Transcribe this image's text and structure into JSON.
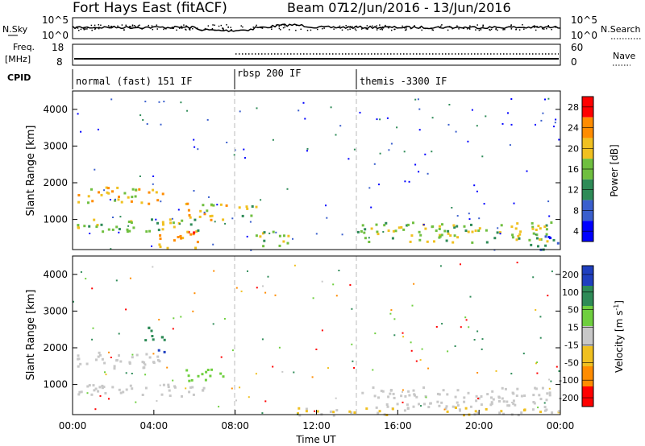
{
  "header": {
    "title": "Fort Hays East (fitACF)",
    "beam": "Beam 07",
    "date_range": "12/Jun/2016 - 13/Jun/2016"
  },
  "noise_panel": {
    "left_label": "N.Sky",
    "right_label": "N.Search",
    "left_ticks": [
      "10^5",
      "10^0"
    ],
    "right_ticks": [
      "10^5",
      "10^0"
    ]
  },
  "freq_panel": {
    "left_label_1": "Freq.",
    "left_label_2": "[MHz]",
    "right_label": "Nave",
    "left_ticks": [
      "18",
      "8"
    ],
    "right_ticks": [
      "60",
      "0"
    ]
  },
  "cpid_panel": {
    "label": "CPID",
    "modes": [
      "normal (fast) 151 IF",
      "rbsp 200 IF",
      "themis -3300 IF"
    ]
  },
  "power_panel": {
    "ylabel": "Slant Range [km]",
    "yticks": [
      "4000",
      "3000",
      "2000",
      "1000"
    ],
    "colorbar_label": "Power [dB]",
    "colorbar_ticks": [
      "28",
      "24",
      "20",
      "16",
      "12",
      "8",
      "4"
    ],
    "colors": [
      "#0000ff",
      "#3a5fcd",
      "#2e8b57",
      "#6fbf3f",
      "#f0c020",
      "#ff8c00",
      "#ff0000"
    ]
  },
  "velocity_panel": {
    "ylabel": "Slant Range [km]",
    "yticks": [
      "4000",
      "3000",
      "2000",
      "1000"
    ],
    "colorbar_label": "Velocity [m s",
    "colorbar_label_sup": "-1",
    "colorbar_label_end": "]",
    "colorbar_ticks": [
      "200",
      "100",
      "50",
      "15",
      "-15",
      "-50",
      "-100",
      "-200"
    ],
    "colors": [
      "#1f3fbf",
      "#2e8b57",
      "#6fcf3f",
      "#c8c8c8",
      "#f0c020",
      "#ff8c00",
      "#ff0000"
    ]
  },
  "time_axis": {
    "label": "Time UT",
    "ticks": [
      "00:00",
      "04:00",
      "08:00",
      "12:00",
      "16:00",
      "20:00",
      "00:00"
    ]
  },
  "chart_data": {
    "type": "heatmap",
    "title": "Fort Hays East (fitACF)",
    "x_range_hours": [
      0,
      24
    ],
    "y_range_km": [
      180,
      4500
    ],
    "mode_change_times": [
      "08:00",
      "14:00"
    ],
    "power_features": [
      {
        "t0": 0.2,
        "t1": 4.4,
        "r0": 1450,
        "r1": 1900,
        "level": 20
      },
      {
        "t0": 0.2,
        "t1": 6.5,
        "r0": 700,
        "r1": 1050,
        "level": 16
      },
      {
        "t0": 4.2,
        "t1": 6.3,
        "r0": 250,
        "r1": 700,
        "level": 24
      },
      {
        "t0": 5.5,
        "t1": 7.6,
        "r0": 1000,
        "r1": 1500,
        "level": 20
      },
      {
        "t0": 8.0,
        "t1": 9.2,
        "r0": 1100,
        "r1": 1400,
        "level": 16
      },
      {
        "t0": 9.0,
        "t1": 10.8,
        "r0": 300,
        "r1": 700,
        "level": 16
      },
      {
        "t0": 14.0,
        "t1": 23.5,
        "r0": 400,
        "r1": 950,
        "level": 16
      },
      {
        "t0": 22.5,
        "t1": 24.0,
        "r0": 200,
        "r1": 600,
        "level": 8
      }
    ],
    "velocity_features": [
      {
        "t0": 0.2,
        "t1": 4.4,
        "r0": 1450,
        "r1": 1900,
        "v": 0
      },
      {
        "t0": 0.2,
        "t1": 6.5,
        "r0": 700,
        "r1": 1050,
        "v": 0
      },
      {
        "t0": 5.5,
        "t1": 7.6,
        "r0": 1100,
        "r1": 1450,
        "v": 50
      },
      {
        "t0": 4.0,
        "t1": 4.6,
        "r0": 1800,
        "r1": 2000,
        "v": 200
      },
      {
        "t0": 3.5,
        "t1": 4.5,
        "r0": 2200,
        "r1": 2700,
        "v": 100
      },
      {
        "t0": 14.0,
        "t1": 23.5,
        "r0": 400,
        "r1": 950,
        "v": 0
      },
      {
        "t0": 11.0,
        "t1": 24.0,
        "r0": 180,
        "r1": 400,
        "v": -15
      }
    ]
  }
}
